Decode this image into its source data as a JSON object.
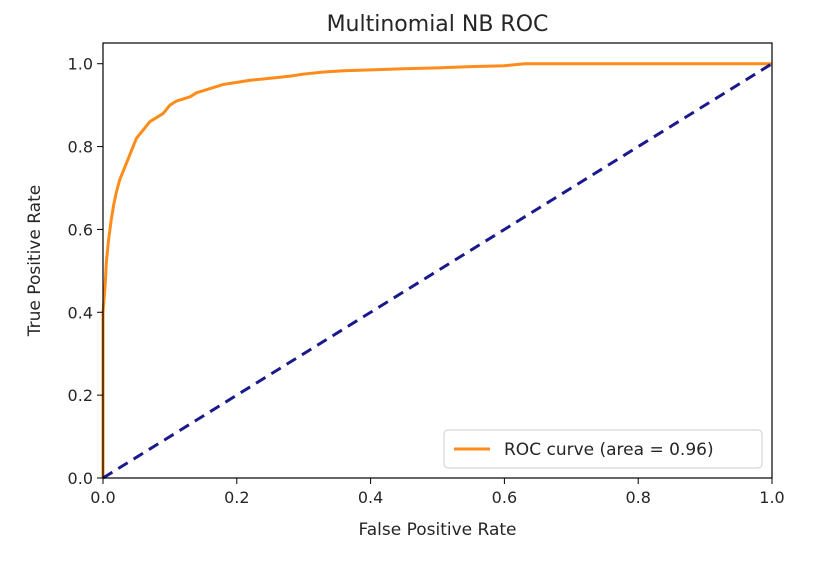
{
  "chart_data": {
    "type": "line",
    "title": "Multinomial NB ROC",
    "xlabel": "False Positive Rate",
    "ylabel": "True Positive Rate",
    "xlim": [
      0.0,
      1.0
    ],
    "ylim": [
      0.0,
      1.05
    ],
    "xticks": [
      0.0,
      0.2,
      0.4,
      0.6,
      0.8,
      1.0
    ],
    "yticks": [
      0.0,
      0.2,
      0.4,
      0.6,
      0.8,
      1.0
    ],
    "xtick_labels": [
      "0.0",
      "0.2",
      "0.4",
      "0.6",
      "0.8",
      "1.0"
    ],
    "ytick_labels": [
      "0.0",
      "0.2",
      "0.4",
      "0.6",
      "0.8",
      "1.0"
    ],
    "grid": false,
    "legend_position": "lower-right",
    "series": [
      {
        "name": "ROC curve (area = 0.96)",
        "color": "#ff8c1a",
        "style": "solid",
        "x": [
          0.0,
          0.0,
          0.003,
          0.005,
          0.008,
          0.012,
          0.016,
          0.02,
          0.025,
          0.03,
          0.035,
          0.04,
          0.045,
          0.05,
          0.06,
          0.07,
          0.08,
          0.09,
          0.1,
          0.11,
          0.12,
          0.13,
          0.14,
          0.15,
          0.16,
          0.18,
          0.2,
          0.22,
          0.25,
          0.28,
          0.3,
          0.33,
          0.36,
          0.4,
          0.45,
          0.5,
          0.55,
          0.6,
          0.63,
          0.7,
          0.8,
          0.9,
          1.0
        ],
        "y": [
          0.0,
          0.4,
          0.46,
          0.52,
          0.57,
          0.62,
          0.66,
          0.69,
          0.72,
          0.74,
          0.76,
          0.78,
          0.8,
          0.82,
          0.84,
          0.86,
          0.87,
          0.88,
          0.9,
          0.91,
          0.915,
          0.92,
          0.93,
          0.935,
          0.94,
          0.95,
          0.955,
          0.96,
          0.965,
          0.97,
          0.975,
          0.98,
          0.983,
          0.985,
          0.988,
          0.99,
          0.993,
          0.995,
          1.0,
          1.0,
          1.0,
          1.0,
          1.0
        ]
      },
      {
        "name": "",
        "color": "#1a1a8c",
        "style": "dashed",
        "x": [
          0.0,
          1.0
        ],
        "y": [
          0.0,
          1.0
        ]
      }
    ]
  }
}
